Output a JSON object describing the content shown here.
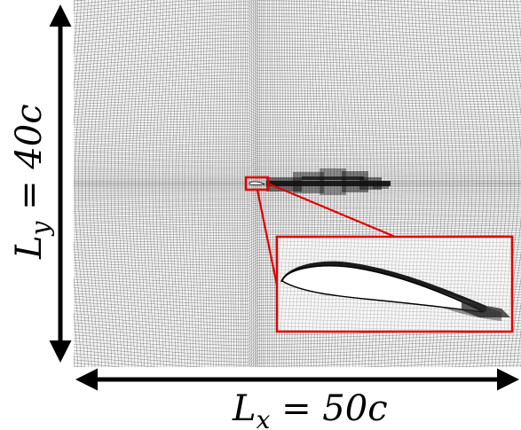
{
  "labels": {
    "ly_symbol": "L",
    "ly_sub": "y",
    "ly_value": " = 40c",
    "lx_symbol": "L",
    "lx_sub": "x",
    "lx_value": " = 50c"
  },
  "colors": {
    "mesh_line": "#222222",
    "mesh_background": "#f4f4f4",
    "highlight": "#e00000",
    "arrow": "#000000",
    "airfoil": "#ffffff",
    "wake": "#111111"
  },
  "figure": {
    "kind": "computational-mesh",
    "domain_x": "50c",
    "domain_y": "40c",
    "inset": "zoom on airfoil with wake refinement"
  }
}
